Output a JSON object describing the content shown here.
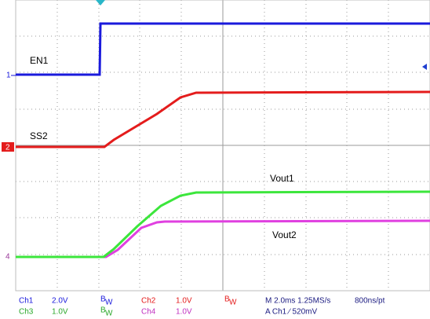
{
  "traces": {
    "en1": "EN1",
    "ss2": "SS2",
    "vout1": "Vout1",
    "vout2": "Vout2"
  },
  "markers": {
    "ch1": "1",
    "ch2": "2",
    "ch4": "4"
  },
  "status": {
    "channels": [
      {
        "name": "Ch1",
        "scale": "2.0V",
        "bw": "B",
        "bw_sub": "W"
      },
      {
        "name": "Ch2",
        "scale": "1.0V",
        "bw": "B",
        "bw_sub": "W"
      },
      {
        "name": "Ch3",
        "scale": "1.0V",
        "bw": "B",
        "bw_sub": "W"
      },
      {
        "name": "Ch4",
        "scale": "1.0V"
      }
    ],
    "timebase": "M 2.0ms 1.25MS/s",
    "resolution": "800ns/pt",
    "trigger": "A  Ch1  ∕  520mV"
  }
}
